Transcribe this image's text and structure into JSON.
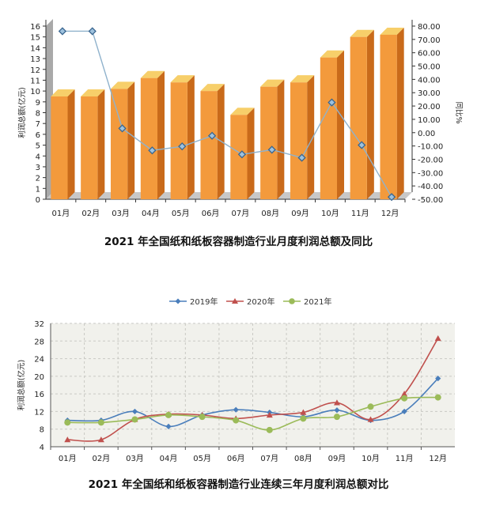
{
  "chart_data": [
    {
      "type": "bar",
      "title": "2021 年全国纸和纸板容器制造行业月度利润总额及同比",
      "categories": [
        "01月",
        "02月",
        "03月",
        "04月",
        "05月",
        "06月",
        "07月",
        "08月",
        "09月",
        "10月",
        "11月",
        "12月"
      ],
      "ylabel": "利润总额(亿元)",
      "y2label": "同比%",
      "ylim": [
        0,
        16
      ],
      "y2lim": [
        -50,
        80
      ],
      "yticks": [
        "0",
        "1",
        "2",
        "3",
        "4",
        "5",
        "6",
        "7",
        "8",
        "9",
        "10",
        "11",
        "12",
        "13",
        "14",
        "15",
        "16"
      ],
      "y2ticks": [
        "-50.00",
        "-40.00",
        "-30.00",
        "-20.00",
        "-10.00",
        "0.00",
        "10.00",
        "20.00",
        "30.00",
        "40.00",
        "50.00",
        "60.00",
        "70.00",
        "80.00"
      ],
      "series": [
        {
          "type": "bar",
          "axis": "left",
          "values": [
            9.5,
            9.5,
            10.2,
            11.2,
            10.8,
            10.0,
            7.8,
            10.4,
            10.8,
            13.1,
            15.0,
            15.2
          ]
        },
        {
          "type": "line",
          "axis": "right",
          "values": [
            73.5,
            73.5,
            0.5,
            -16.0,
            -13.0,
            -5.0,
            -19.0,
            -15.5,
            -21.5,
            20.0,
            -12.0,
            -51.0
          ]
        }
      ],
      "colors": {
        "bar_front": "#f39a3c",
        "bar_side": "#c96a1a",
        "bar_top": "#f7cf6a",
        "line": "#8fb2cc",
        "marker": "#3a6690"
      },
      "grid": false
    },
    {
      "type": "line",
      "title": "2021 年全国纸和纸板容器制造行业连续三年月度利润总额对比",
      "categories": [
        "01月",
        "02月",
        "03月",
        "04月",
        "05月",
        "06月",
        "07月",
        "08月",
        "09月",
        "10月",
        "11月",
        "12月"
      ],
      "ylabel": "利润总额(亿元)",
      "ylim": [
        4,
        32
      ],
      "yticks": [
        "4",
        "8",
        "12",
        "16",
        "20",
        "24",
        "28",
        "32"
      ],
      "legend_position": "top",
      "grid": true,
      "series": [
        {
          "name": "2019年",
          "color": "#4a7ebb",
          "values": [
            10.0,
            10.0,
            12.0,
            8.6,
            11.2,
            12.4,
            11.8,
            10.8,
            12.3,
            10.0,
            12.0,
            19.5
          ]
        },
        {
          "name": "2020年",
          "color": "#c0504d",
          "values": [
            5.6,
            5.6,
            10.2,
            11.4,
            11.2,
            10.4,
            11.2,
            11.8,
            14.0,
            10.2,
            16.0,
            28.6
          ]
        },
        {
          "name": "2021年",
          "color": "#9bbb59",
          "values": [
            9.5,
            9.5,
            10.2,
            11.2,
            10.8,
            10.0,
            7.8,
            10.4,
            10.8,
            13.1,
            15.0,
            15.2
          ]
        }
      ]
    }
  ]
}
